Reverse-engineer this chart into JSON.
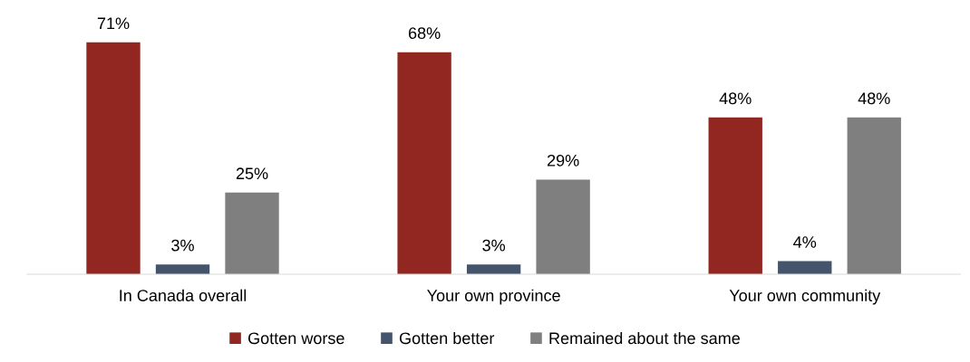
{
  "chart_data": {
    "type": "bar",
    "categories": [
      "In Canada overall",
      "Your own province",
      "Your own community"
    ],
    "series": [
      {
        "name": "Gotten worse",
        "color": "#922722",
        "values": [
          71,
          68,
          48
        ],
        "value_labels": [
          "71%",
          "68%",
          "48%"
        ]
      },
      {
        "name": "Gotten better",
        "color": "#44546a",
        "values": [
          3,
          3,
          4
        ],
        "value_labels": [
          "3%",
          "3%",
          "4%"
        ]
      },
      {
        "name": "Remained about the same",
        "color": "#7f7f7f",
        "values": [
          25,
          29,
          48
        ],
        "value_labels": [
          "25%",
          "29%",
          "48%"
        ]
      }
    ],
    "legend": "bottom",
    "grid": false
  }
}
